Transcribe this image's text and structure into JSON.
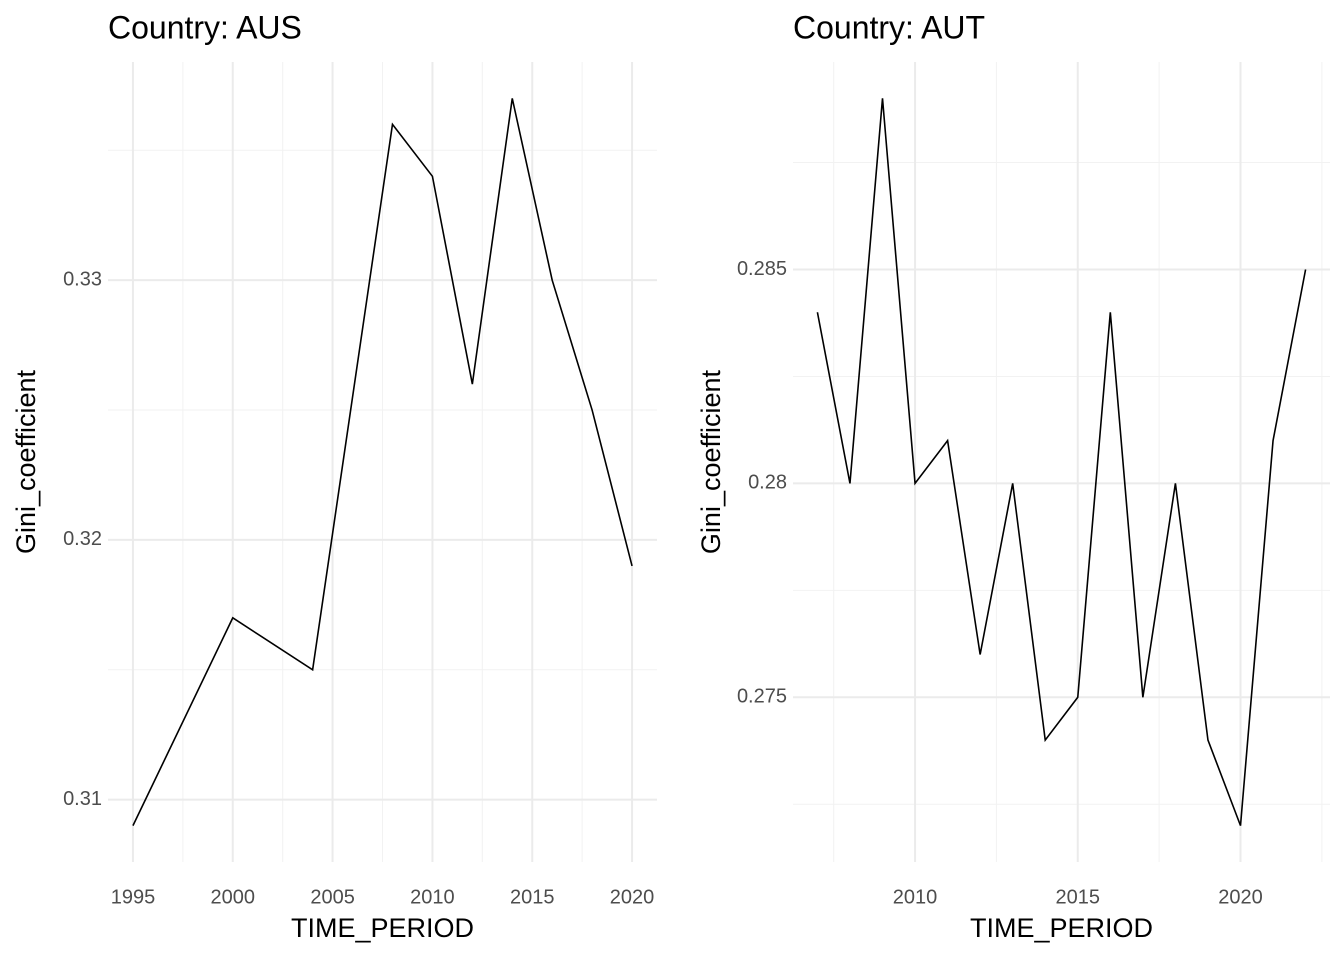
{
  "chart_data": [
    {
      "type": "line",
      "title": "Country: AUS",
      "x_label": "TIME_PERIOD",
      "y_label": "Gini_coefficient",
      "x": [
        1995,
        2000,
        2004,
        2008,
        2010,
        2012,
        2014,
        2016,
        2018,
        2020
      ],
      "series": [
        {
          "color": "#000000",
          "values": [
            0.309,
            0.317,
            0.315,
            0.336,
            0.334,
            0.326,
            0.337,
            0.33,
            0.325,
            0.319
          ]
        }
      ],
      "xlim": [
        1993.75,
        2021.25
      ],
      "ylim": [
        0.3076,
        0.3384
      ],
      "xticks": [
        1995,
        2000,
        2005,
        2010,
        2015,
        2020
      ],
      "yticks": [
        0.31,
        0.32,
        0.33
      ],
      "grid": true
    },
    {
      "type": "line",
      "title": "Country: AUT",
      "x_label": "TIME_PERIOD",
      "y_label": "Gini_coefficient",
      "x": [
        2007,
        2008,
        2009,
        2010,
        2011,
        2012,
        2013,
        2014,
        2015,
        2016,
        2017,
        2018,
        2019,
        2020,
        2021,
        2022
      ],
      "series": [
        {
          "color": "#000000",
          "values": [
            0.284,
            0.28,
            0.289,
            0.28,
            0.281,
            0.276,
            0.28,
            0.274,
            0.275,
            0.284,
            0.275,
            0.28,
            0.274,
            0.272,
            0.281,
            0.285
          ]
        }
      ],
      "xlim": [
        2006.25,
        2022.75
      ],
      "ylim": [
        0.27115,
        0.28985
      ],
      "xticks": [
        2010,
        2015,
        2020
      ],
      "yticks": [
        0.275,
        0.28,
        0.285
      ],
      "grid": true
    }
  ]
}
